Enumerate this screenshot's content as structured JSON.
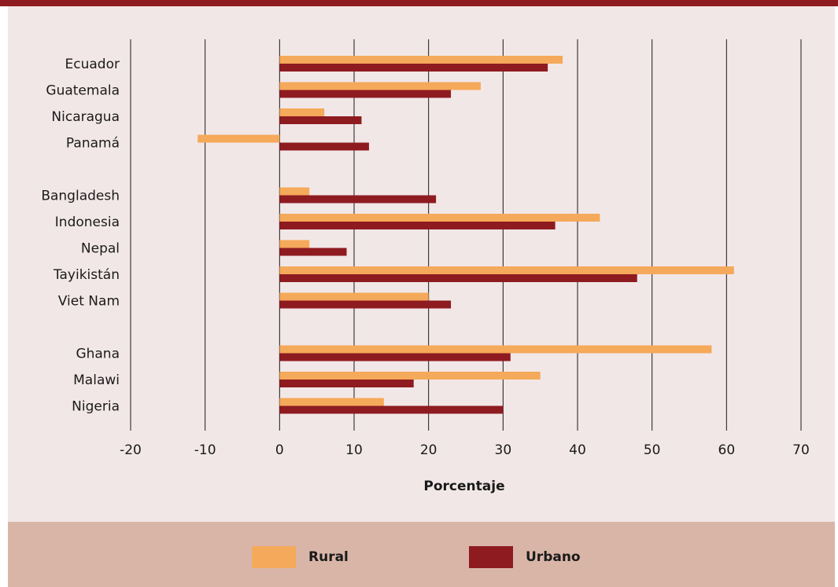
{
  "chart_data": {
    "type": "bar",
    "orientation": "horizontal",
    "title": "",
    "xlabel": "Porcentaje",
    "ylabel": "",
    "xlim": [
      -20,
      70
    ],
    "xticks": [
      -20,
      -10,
      0,
      10,
      20,
      30,
      40,
      50,
      60,
      70
    ],
    "grid": true,
    "legend_position": "bottom",
    "categories": [
      "Ecuador",
      "Guatemala",
      "Nicaragua",
      "Panamá",
      "Bangladesh",
      "Indonesia",
      "Nepal",
      "Tayikistán",
      "Viet Nam",
      "Ghana",
      "Malawi",
      "Nigeria"
    ],
    "groups": [
      [
        "Ecuador",
        "Guatemala",
        "Nicaragua",
        "Panamá"
      ],
      [
        "Bangladesh",
        "Indonesia",
        "Nepal",
        "Tayikistán",
        "Viet Nam"
      ],
      [
        "Ghana",
        "Malawi",
        "Nigeria"
      ]
    ],
    "series": [
      {
        "name": "Rural",
        "color": "#f5a95a",
        "values": [
          38,
          27,
          6,
          -11,
          4,
          43,
          4,
          61,
          20,
          58,
          35,
          14
        ]
      },
      {
        "name": "Urbano",
        "color": "#8e1b20",
        "values": [
          36,
          23,
          11,
          12,
          21,
          37,
          9,
          48,
          23,
          31,
          18,
          30
        ]
      }
    ]
  },
  "colors": {
    "top_bar": "#8e1b20",
    "plot_background": "#f2e7e7",
    "legend_background": "#d9b5a8",
    "gridline": "#1a1a1a"
  },
  "legend": {
    "rural_label": "Rural",
    "urbano_label": "Urbano"
  }
}
